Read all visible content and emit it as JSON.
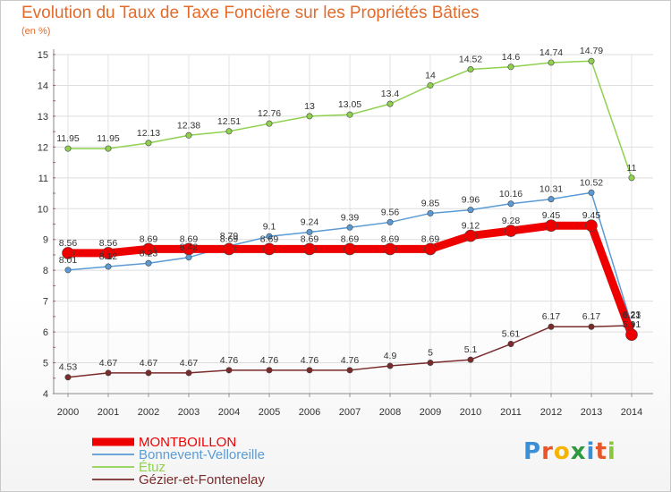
{
  "chart_data": {
    "type": "line",
    "title": "Evolution du Taux de Taxe Foncière sur les Propriétés Bâties",
    "ylabel": "(en %)",
    "xlabel": "",
    "categories": [
      "2000",
      "2001",
      "2002",
      "2003",
      "2004",
      "2005",
      "2006",
      "2007",
      "2008",
      "2009",
      "2010",
      "2011",
      "2012",
      "2013",
      "2014"
    ],
    "ylim": [
      4,
      15
    ],
    "yticks": [
      4,
      5,
      6,
      7,
      8,
      9,
      10,
      11,
      12,
      13,
      14,
      15
    ],
    "series": [
      {
        "name": "MONTBOILLON",
        "color": "#ee0000",
        "values": [
          8.56,
          8.56,
          8.69,
          8.69,
          8.69,
          8.69,
          8.69,
          8.69,
          8.69,
          8.69,
          9.12,
          9.28,
          9.45,
          9.45,
          5.91
        ],
        "labels": [
          "8.56",
          "8.56",
          "8.69",
          "8.69",
          "8.69",
          "8.69",
          "8.69",
          "8.69",
          "8.69",
          "8.69",
          "9.12",
          "9.28",
          "9.45",
          "9.45",
          "5.91"
        ]
      },
      {
        "name": "Bonnevent-Velloreille",
        "color": "#5b9bd5",
        "values": [
          8.01,
          8.12,
          8.23,
          8.42,
          8.79,
          9.1,
          9.24,
          9.39,
          9.56,
          9.85,
          9.96,
          10.16,
          10.31,
          10.52,
          6.23
        ],
        "labels": [
          "8.01",
          "8.12",
          "8.23",
          "8.42",
          "8.79",
          "9.1",
          "9.24",
          "9.39",
          "9.56",
          "9.85",
          "9.96",
          "10.16",
          "10.31",
          "10.52",
          "6.23"
        ]
      },
      {
        "name": "Étuz",
        "color": "#8fd14f",
        "values": [
          11.95,
          11.95,
          12.13,
          12.38,
          12.51,
          12.76,
          13,
          13.05,
          13.4,
          14,
          14.52,
          14.6,
          14.74,
          14.79,
          11
        ],
        "labels": [
          "11.95",
          "11.95",
          "12.13",
          "12.38",
          "12.51",
          "12.76",
          "13",
          "13.05",
          "13.4",
          "14",
          "14.52",
          "14.6",
          "14.74",
          "14.79",
          "11"
        ]
      },
      {
        "name": "Gézier-et-Fontenelay",
        "color": "#7b2b2b",
        "values": [
          4.53,
          4.67,
          4.67,
          4.67,
          4.76,
          4.76,
          4.76,
          4.76,
          4.9,
          5,
          5.1,
          5.61,
          6.17,
          6.17,
          6.21
        ],
        "labels": [
          "4.53",
          "4.67",
          "4.67",
          "4.67",
          "4.76",
          "4.76",
          "4.76",
          "4.76",
          "4.9",
          "5",
          "5.1",
          "5.61",
          "6.17",
          "6.17",
          "6.21"
        ]
      }
    ]
  },
  "brand": {
    "letters": [
      "P",
      "r",
      "o",
      "x",
      "i",
      "t",
      "i"
    ],
    "colors": [
      "#3a8fd6",
      "#e8562a",
      "#f5b400",
      "#2e9a3e",
      "#3a8fd6",
      "#e8562a",
      "#8cc43a"
    ]
  }
}
